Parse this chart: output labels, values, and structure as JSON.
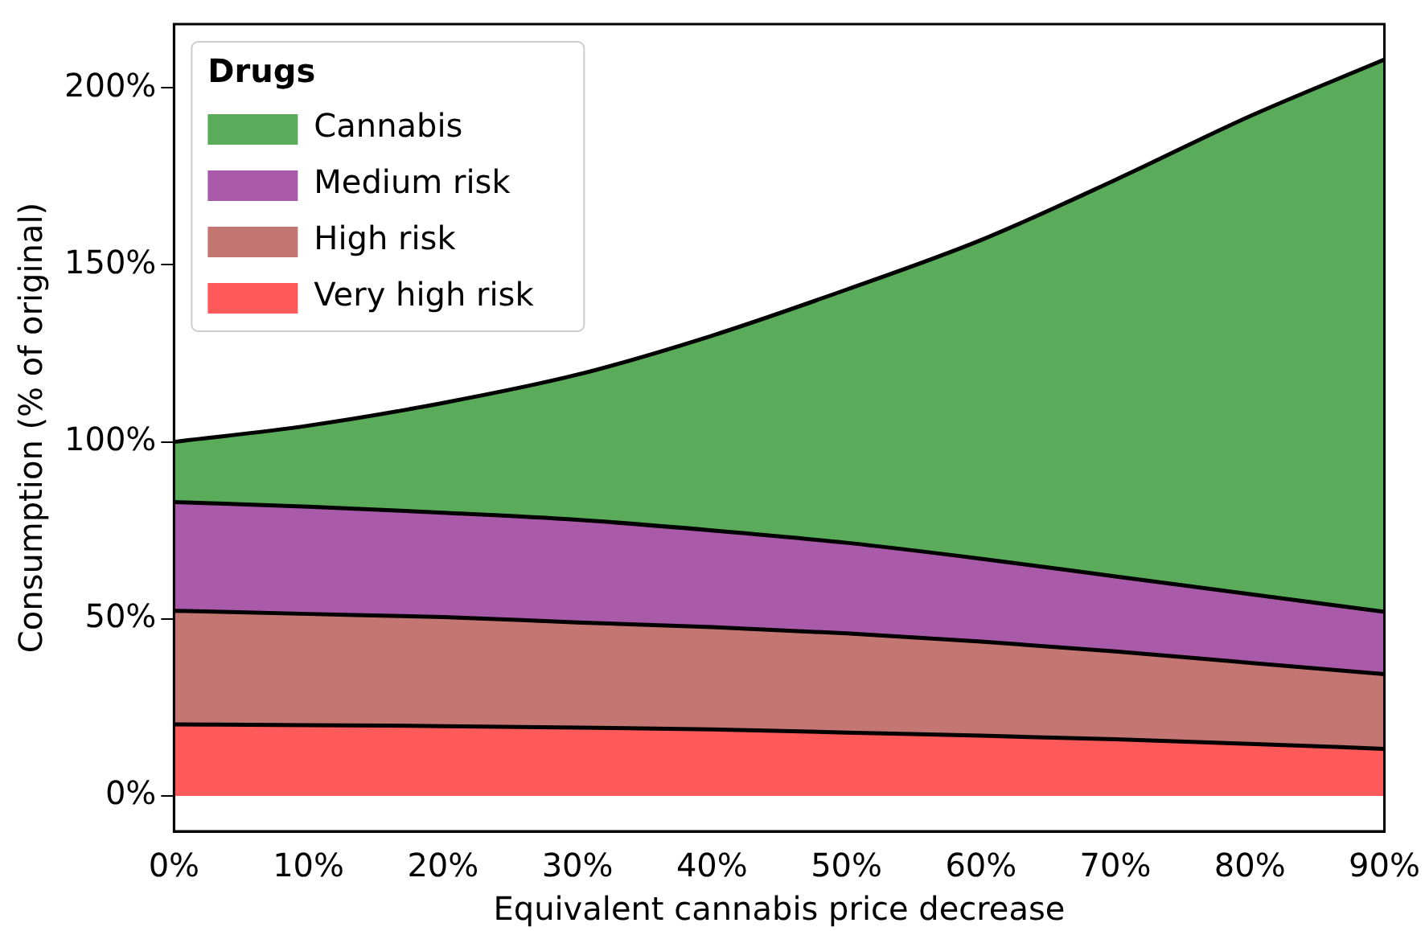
{
  "chart_data": {
    "type": "area",
    "stacked": true,
    "xlabel": "Equivalent cannabis price decrease",
    "ylabel": "Consumption (% of original)",
    "legend_title": "Drugs",
    "legend": "top left",
    "grid": false,
    "x": [
      0,
      10,
      20,
      30,
      40,
      50,
      60,
      70,
      80,
      90
    ],
    "xlim": [
      0,
      90
    ],
    "xticks": [
      {
        "value": 0,
        "label": "0%"
      },
      {
        "value": 10,
        "label": "10%"
      },
      {
        "value": 20,
        "label": "20%"
      },
      {
        "value": 30,
        "label": "30%"
      },
      {
        "value": 40,
        "label": "40%"
      },
      {
        "value": 50,
        "label": "50%"
      },
      {
        "value": 60,
        "label": "60%"
      },
      {
        "value": 70,
        "label": "70%"
      },
      {
        "value": 80,
        "label": "80%"
      },
      {
        "value": 90,
        "label": "90%"
      }
    ],
    "ylim": [
      -10,
      218
    ],
    "yticks": [
      {
        "value": 0,
        "label": "0%"
      },
      {
        "value": 50,
        "label": "50%"
      },
      {
        "value": 100,
        "label": "100%"
      },
      {
        "value": 150,
        "label": "150%"
      },
      {
        "value": 200,
        "label": "200%"
      }
    ],
    "series": [
      {
        "name": "Very high risk",
        "color": "#ff5a5a",
        "values": [
          20.2,
          20,
          19.7,
          19.3,
          18.8,
          17.9,
          17,
          16,
          14.7,
          13.3
        ]
      },
      {
        "name": "High risk",
        "color": "#c47672",
        "values": [
          32.1,
          31.4,
          30.8,
          29.7,
          28.9,
          28,
          26.6,
          24.8,
          22.9,
          21.1
        ]
      },
      {
        "name": "Medium risk",
        "color": "#a95aa9",
        "values": [
          30.7,
          30.3,
          29.5,
          29,
          27.3,
          25.6,
          23.4,
          21.2,
          19.4,
          17.6
        ]
      },
      {
        "name": "Cannabis",
        "color": "#5aab5a",
        "values": [
          17,
          22.9,
          31,
          41,
          55,
          71.5,
          90,
          112,
          135,
          156
        ]
      }
    ]
  }
}
